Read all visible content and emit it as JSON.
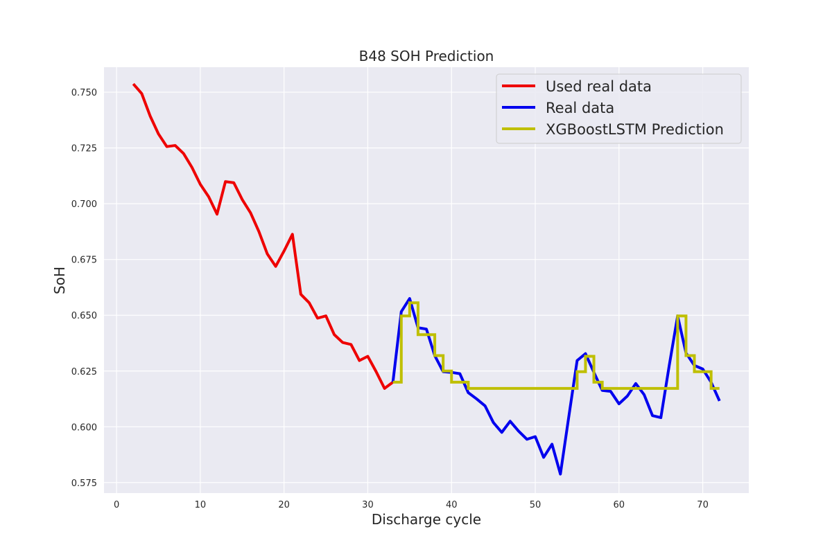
{
  "chart_data": {
    "type": "line",
    "title": "B48 SOH Prediction",
    "xlabel": "Discharge cycle",
    "ylabel": "SoH",
    "xlim": [
      -1.5,
      75.5
    ],
    "ylim": [
      0.5703,
      0.7612
    ],
    "xticks": [
      0,
      10,
      20,
      30,
      40,
      50,
      60,
      70
    ],
    "yticks": [
      0.575,
      0.6,
      0.625,
      0.65,
      0.675,
      0.7,
      0.725,
      0.75
    ],
    "ytick_labels": [
      "0.575",
      "0.600",
      "0.625",
      "0.650",
      "0.675",
      "0.700",
      "0.725",
      "0.750"
    ],
    "grid": true,
    "legend_position": "top-right",
    "background": "#eaeaf2",
    "series": [
      {
        "name": "Used real data",
        "color": "#ee0000",
        "style": "line",
        "points": [
          [
            2,
            0.7537
          ],
          [
            3,
            0.7494
          ],
          [
            4,
            0.7394
          ],
          [
            5,
            0.7313
          ],
          [
            6,
            0.7256
          ],
          [
            7,
            0.7261
          ],
          [
            8,
            0.7225
          ],
          [
            9,
            0.7163
          ],
          [
            10,
            0.7087
          ],
          [
            11,
            0.7031
          ],
          [
            12,
            0.6953
          ],
          [
            13,
            0.7099
          ],
          [
            14,
            0.7094
          ],
          [
            15,
            0.7019
          ],
          [
            16,
            0.6959
          ],
          [
            17,
            0.6875
          ],
          [
            18,
            0.6775
          ],
          [
            19,
            0.6719
          ],
          [
            20,
            0.6788
          ],
          [
            21,
            0.6863
          ],
          [
            22,
            0.6594
          ],
          [
            23,
            0.6556
          ],
          [
            24,
            0.6487
          ],
          [
            25,
            0.6497
          ],
          [
            26,
            0.6413
          ],
          [
            27,
            0.6378
          ],
          [
            28,
            0.6369
          ],
          [
            29,
            0.6297
          ],
          [
            30,
            0.6316
          ],
          [
            31,
            0.6247
          ],
          [
            32,
            0.6172
          ],
          [
            33,
            0.62
          ]
        ]
      },
      {
        "name": "Real data",
        "color": "#0000ee",
        "style": "line",
        "points": [
          [
            33,
            0.62
          ],
          [
            34,
            0.6516
          ],
          [
            35,
            0.6575
          ],
          [
            36,
            0.6444
          ],
          [
            37,
            0.6438
          ],
          [
            38,
            0.6319
          ],
          [
            39,
            0.6247
          ],
          [
            40,
            0.6244
          ],
          [
            41,
            0.6238
          ],
          [
            42,
            0.6153
          ],
          [
            43,
            0.6125
          ],
          [
            44,
            0.6094
          ],
          [
            45,
            0.6019
          ],
          [
            46,
            0.5975
          ],
          [
            47,
            0.6025
          ],
          [
            48,
            0.5981
          ],
          [
            49,
            0.5944
          ],
          [
            50,
            0.5956
          ],
          [
            51,
            0.5863
          ],
          [
            52,
            0.5922
          ],
          [
            53,
            0.5788
          ],
          [
            54,
            0.6044
          ],
          [
            55,
            0.6297
          ],
          [
            56,
            0.6328
          ],
          [
            57,
            0.6244
          ],
          [
            58,
            0.6163
          ],
          [
            59,
            0.6159
          ],
          [
            60,
            0.6103
          ],
          [
            61,
            0.6138
          ],
          [
            62,
            0.6194
          ],
          [
            63,
            0.6144
          ],
          [
            64,
            0.605
          ],
          [
            65,
            0.6041
          ],
          [
            66,
            0.6275
          ],
          [
            67,
            0.6497
          ],
          [
            68,
            0.6331
          ],
          [
            69,
            0.6275
          ],
          [
            70,
            0.6259
          ],
          [
            71,
            0.62
          ],
          [
            72,
            0.6116
          ]
        ]
      },
      {
        "name": "XGBoostLSTM Prediction",
        "color": "#bfbf00",
        "style": "step",
        "points": [
          [
            33,
            0.62
          ],
          [
            34,
            0.62
          ],
          [
            34,
            0.6497
          ],
          [
            35,
            0.6497
          ],
          [
            35,
            0.6556
          ],
          [
            36,
            0.6556
          ],
          [
            36,
            0.6413
          ],
          [
            38,
            0.6413
          ],
          [
            38,
            0.6319
          ],
          [
            39,
            0.6319
          ],
          [
            39,
            0.625
          ],
          [
            40,
            0.625
          ],
          [
            40,
            0.62
          ],
          [
            42,
            0.62
          ],
          [
            42,
            0.6172
          ],
          [
            55,
            0.6172
          ],
          [
            55,
            0.6247
          ],
          [
            56,
            0.6247
          ],
          [
            56,
            0.6316
          ],
          [
            57,
            0.6316
          ],
          [
            57,
            0.62
          ],
          [
            58,
            0.62
          ],
          [
            58,
            0.6172
          ],
          [
            67,
            0.6172
          ],
          [
            67,
            0.6497
          ],
          [
            68,
            0.6497
          ],
          [
            68,
            0.6319
          ],
          [
            69,
            0.6319
          ],
          [
            69,
            0.6247
          ],
          [
            71,
            0.6247
          ],
          [
            71,
            0.6172
          ],
          [
            72,
            0.6172
          ]
        ]
      }
    ]
  }
}
